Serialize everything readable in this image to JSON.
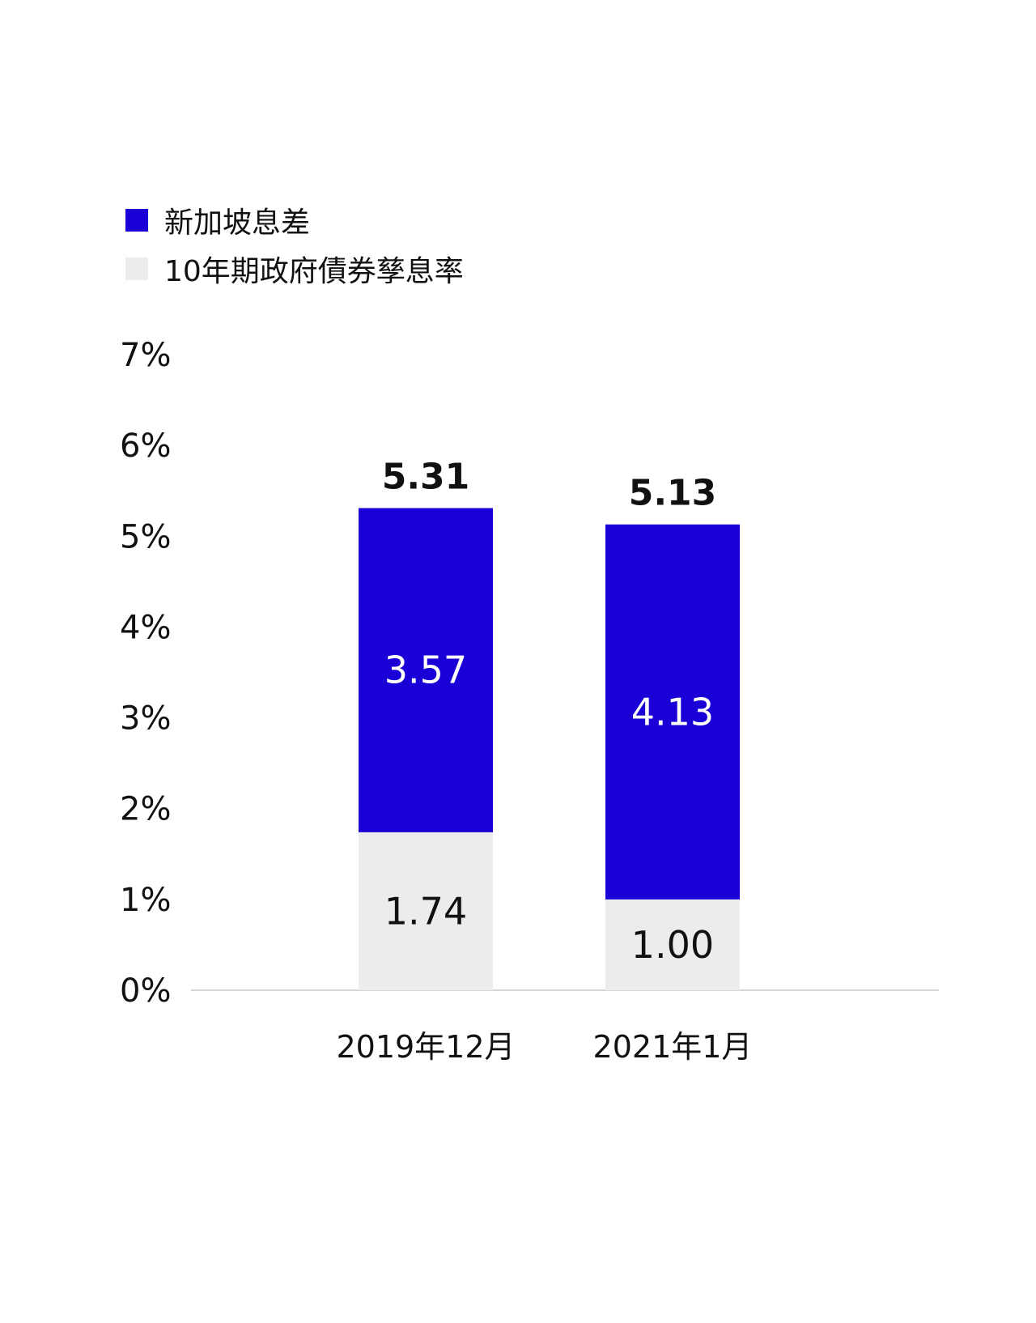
{
  "legend": [
    {
      "label": "新加坡息差",
      "color": "#1a00d6"
    },
    {
      "label": "10年期政府債券孳息率",
      "color": "#ececec"
    }
  ],
  "chart_data": {
    "type": "bar",
    "stacked": true,
    "categories": [
      "2019年12月",
      "2021年1月"
    ],
    "series": [
      {
        "name": "10年期政府債券孳息率",
        "color": "#ececec",
        "values": [
          1.74,
          1.0
        ],
        "labels": [
          "1.74",
          "1.00"
        ]
      },
      {
        "name": "新加坡息差",
        "color": "#1a00d6",
        "values": [
          3.57,
          4.13
        ],
        "labels": [
          "3.57",
          "4.13"
        ]
      }
    ],
    "totals": [
      "5.31",
      "5.13"
    ],
    "ylim": [
      0,
      7
    ],
    "yticks": [
      "0%",
      "1%",
      "2%",
      "3%",
      "4%",
      "5%",
      "6%",
      "7%"
    ],
    "grid": false,
    "legend_position": "top-left"
  }
}
